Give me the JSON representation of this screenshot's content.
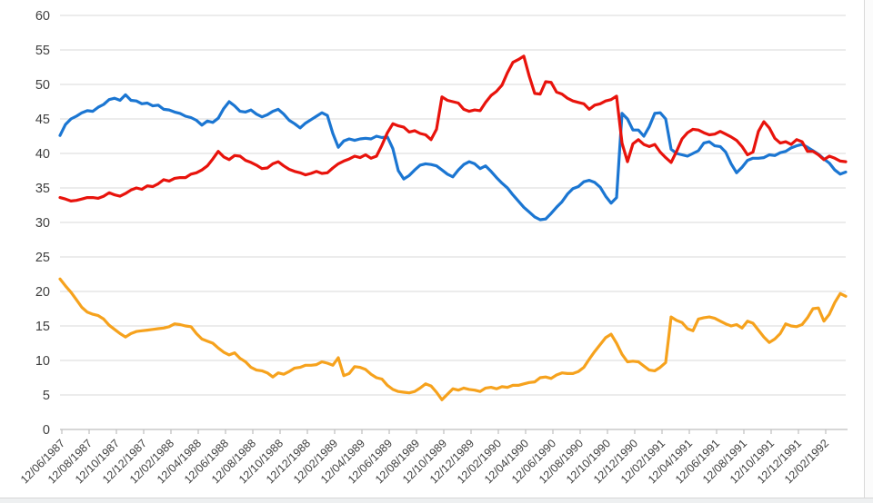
{
  "page": {
    "background": "#ffffff",
    "frame_strip_color": "#eef0f1",
    "frame_line_color": "#d9d9d9"
  },
  "chart_data": {
    "type": "line",
    "title": "",
    "legend": "none",
    "grid": "horizontal",
    "grid_color": "#d9d9d9",
    "axis_color": "#bfbfbf",
    "label_color": "#3f3f3f",
    "y_axis": {
      "min": 0,
      "max": 60,
      "step": 5,
      "tick_labels": [
        "0",
        "5",
        "10",
        "15",
        "20",
        "25",
        "30",
        "35",
        "40",
        "45",
        "50",
        "55",
        "60"
      ]
    },
    "x_axis": {
      "tick_interval": "2 months",
      "first_tick": "12/06/1987",
      "last_tick": "12/02/1992",
      "tick_labels": [
        "12/06/1987",
        "12/08/1987",
        "12/10/1987",
        "12/12/1987",
        "12/02/1988",
        "12/04/1988",
        "12/06/1988",
        "12/08/1988",
        "12/10/1988",
        "12/12/1988",
        "12/02/1989",
        "12/04/1989",
        "12/06/1989",
        "12/08/1989",
        "12/10/1989",
        "12/12/1989",
        "12/02/1990",
        "12/04/1990",
        "12/06/1990",
        "12/08/1990",
        "12/10/1990",
        "12/12/1990",
        "12/02/1991",
        "12/04/1991",
        "12/06/1991",
        "12/08/1991",
        "12/10/1991",
        "12/12/1991",
        "12/02/1992"
      ],
      "data_x_start_tick": -0.0667,
      "data_x_step_ticks": 0.2
    },
    "series": [
      {
        "name": "blue",
        "color": "#1b76d2",
        "values": [
          42.6,
          44.2,
          45.0,
          45.4,
          45.9,
          46.2,
          46.1,
          46.7,
          47.1,
          47.8,
          48.0,
          47.7,
          48.5,
          47.7,
          47.6,
          47.2,
          47.3,
          46.9,
          47.0,
          46.4,
          46.3,
          46.0,
          45.8,
          45.4,
          45.2,
          44.8,
          44.1,
          44.7,
          44.5,
          45.1,
          46.5,
          47.5,
          46.9,
          46.1,
          46.0,
          46.3,
          45.7,
          45.3,
          45.6,
          46.1,
          46.4,
          45.7,
          44.8,
          44.3,
          43.7,
          44.4,
          44.9,
          45.4,
          45.9,
          45.5,
          42.9,
          40.9,
          41.8,
          42.1,
          41.9,
          42.1,
          42.2,
          42.1,
          42.5,
          42.3,
          42.4,
          40.7,
          37.5,
          36.3,
          36.8,
          37.6,
          38.3,
          38.5,
          38.4,
          38.2,
          37.6,
          37.0,
          36.6,
          37.6,
          38.4,
          38.8,
          38.5,
          37.8,
          38.2,
          37.4,
          36.5,
          35.7,
          35.0,
          34.0,
          33.1,
          32.2,
          31.5,
          30.8,
          30.4,
          30.5,
          31.3,
          32.2,
          33.0,
          34.1,
          34.9,
          35.2,
          35.9,
          36.1,
          35.8,
          35.1,
          33.8,
          32.8,
          33.6,
          45.8,
          45.0,
          43.4,
          43.4,
          42.5,
          43.9,
          45.8,
          45.9,
          45.0,
          40.6,
          40.0,
          39.8,
          39.6,
          40.0,
          40.4,
          41.5,
          41.7,
          41.1,
          41.0,
          40.2,
          38.5,
          37.2,
          38.0,
          39.0,
          39.3,
          39.3,
          39.4,
          39.8,
          39.7,
          40.1,
          40.3,
          40.8,
          41.1,
          41.3,
          40.9,
          40.4,
          39.9,
          39.2,
          38.6,
          37.6,
          37.0,
          37.3
        ]
      },
      {
        "name": "red",
        "color": "#e8130c",
        "values": [
          33.6,
          33.4,
          33.1,
          33.2,
          33.4,
          33.6,
          33.6,
          33.5,
          33.8,
          34.3,
          34.0,
          33.8,
          34.2,
          34.7,
          35.0,
          34.8,
          35.3,
          35.2,
          35.6,
          36.2,
          36.0,
          36.4,
          36.5,
          36.5,
          37.0,
          37.2,
          37.6,
          38.2,
          39.2,
          40.3,
          39.5,
          39.1,
          39.7,
          39.6,
          39.0,
          38.7,
          38.3,
          37.8,
          37.9,
          38.5,
          38.8,
          38.2,
          37.7,
          37.4,
          37.2,
          36.9,
          37.1,
          37.4,
          37.1,
          37.2,
          37.9,
          38.5,
          38.9,
          39.2,
          39.6,
          39.4,
          39.8,
          39.3,
          39.6,
          41.2,
          43.0,
          44.3,
          44.0,
          43.8,
          43.1,
          43.3,
          42.9,
          42.7,
          42.0,
          43.5,
          48.2,
          47.7,
          47.5,
          47.3,
          46.4,
          46.1,
          46.3,
          46.2,
          47.4,
          48.4,
          49.0,
          49.9,
          51.7,
          53.2,
          53.6,
          54.1,
          51.2,
          48.7,
          48.6,
          50.4,
          50.3,
          48.9,
          48.6,
          48.0,
          47.6,
          47.4,
          47.2,
          46.4,
          47.0,
          47.2,
          47.6,
          47.8,
          48.3,
          41.5,
          38.8,
          41.4,
          42.0,
          41.3,
          41.0,
          41.3,
          40.2,
          39.4,
          38.7,
          40.3,
          42.1,
          43.0,
          43.5,
          43.4,
          43.0,
          42.7,
          42.8,
          43.2,
          42.8,
          42.4,
          41.9,
          41.0,
          39.8,
          40.2,
          43.2,
          44.6,
          43.7,
          42.2,
          41.5,
          41.7,
          41.3,
          42.0,
          41.7,
          40.3,
          40.3,
          39.8,
          39.1,
          39.6,
          39.3,
          38.9,
          38.8
        ]
      },
      {
        "name": "orange",
        "color": "#f6a21d",
        "values": [
          21.8,
          20.8,
          19.9,
          18.8,
          17.7,
          17.0,
          16.7,
          16.5,
          16.0,
          15.1,
          14.5,
          13.9,
          13.4,
          13.9,
          14.2,
          14.3,
          14.4,
          14.5,
          14.6,
          14.7,
          14.9,
          15.3,
          15.2,
          15.0,
          14.9,
          13.9,
          13.1,
          12.8,
          12.5,
          11.8,
          11.2,
          10.8,
          11.1,
          10.3,
          9.8,
          9.0,
          8.6,
          8.5,
          8.2,
          7.6,
          8.2,
          8.0,
          8.4,
          8.9,
          9.0,
          9.3,
          9.3,
          9.4,
          9.8,
          9.6,
          9.3,
          10.4,
          7.8,
          8.1,
          9.1,
          9.0,
          8.7,
          8.0,
          7.5,
          7.3,
          6.4,
          5.8,
          5.5,
          5.4,
          5.3,
          5.5,
          6.0,
          6.6,
          6.3,
          5.4,
          4.3,
          5.1,
          5.9,
          5.7,
          6.0,
          5.8,
          5.7,
          5.5,
          6.0,
          6.1,
          5.9,
          6.2,
          6.1,
          6.4,
          6.4,
          6.6,
          6.8,
          6.9,
          7.5,
          7.6,
          7.4,
          7.9,
          8.2,
          8.1,
          8.1,
          8.4,
          9.0,
          10.2,
          11.3,
          12.3,
          13.3,
          13.8,
          12.5,
          10.9,
          9.8,
          9.9,
          9.8,
          9.2,
          8.6,
          8.5,
          9.0,
          9.7,
          16.3,
          15.8,
          15.5,
          14.6,
          14.3,
          16.0,
          16.2,
          16.3,
          16.1,
          15.7,
          15.3,
          15.0,
          15.2,
          14.7,
          15.7,
          15.4,
          14.4,
          13.4,
          12.6,
          13.1,
          13.9,
          15.3,
          15.0,
          14.9,
          15.2,
          16.2,
          17.5,
          17.6,
          15.7,
          16.7,
          18.4,
          19.7,
          19.3
        ]
      }
    ]
  }
}
